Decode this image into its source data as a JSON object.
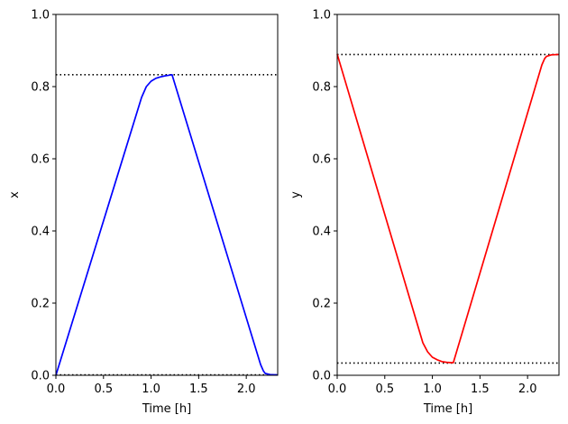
{
  "chart_data": [
    {
      "type": "line",
      "xlabel": "Time [h]",
      "ylabel": "x",
      "xlim": [
        0,
        2.33
      ],
      "ylim": [
        0,
        1.0
      ],
      "xticks": [
        "0.0",
        "0.5",
        "1.0",
        "1.5",
        "2.0"
      ],
      "yticks": [
        "0.0",
        "0.2",
        "0.4",
        "0.6",
        "0.8",
        "1.0"
      ],
      "grid": false,
      "series": [
        {
          "color": "#0000ff",
          "x": [
            0.0,
            0.9,
            0.95,
            1.0,
            1.05,
            1.1,
            1.15,
            1.2,
            1.22,
            2.15,
            2.18,
            2.2,
            2.25,
            2.33
          ],
          "y": [
            0.0,
            0.77,
            0.8,
            0.815,
            0.823,
            0.827,
            0.83,
            0.832,
            0.833,
            0.03,
            0.012,
            0.005,
            0.002,
            0.001
          ]
        }
      ],
      "reference_lines": [
        {
          "y": 0.833,
          "style": "dotted",
          "color": "#000000"
        },
        {
          "y": 0.001,
          "style": "dotted",
          "color": "#000000"
        }
      ]
    },
    {
      "type": "line",
      "xlabel": "Time [h]",
      "ylabel": "y",
      "xlim": [
        0,
        2.33
      ],
      "ylim": [
        0,
        1.0
      ],
      "xticks": [
        "0.0",
        "0.5",
        "1.0",
        "1.5",
        "2.0"
      ],
      "yticks": [
        "0.0",
        "0.2",
        "0.4",
        "0.6",
        "0.8",
        "1.0"
      ],
      "grid": false,
      "series": [
        {
          "color": "#ff0000",
          "x": [
            0.0,
            0.9,
            0.95,
            1.0,
            1.05,
            1.1,
            1.15,
            1.2,
            1.22,
            2.15,
            2.18,
            2.2,
            2.25,
            2.33
          ],
          "y": [
            0.89,
            0.09,
            0.065,
            0.05,
            0.043,
            0.038,
            0.036,
            0.035,
            0.035,
            0.86,
            0.878,
            0.884,
            0.888,
            0.889
          ]
        }
      ],
      "reference_lines": [
        {
          "y": 0.889,
          "style": "dotted",
          "color": "#000000"
        },
        {
          "y": 0.034,
          "style": "dotted",
          "color": "#000000"
        }
      ]
    }
  ]
}
